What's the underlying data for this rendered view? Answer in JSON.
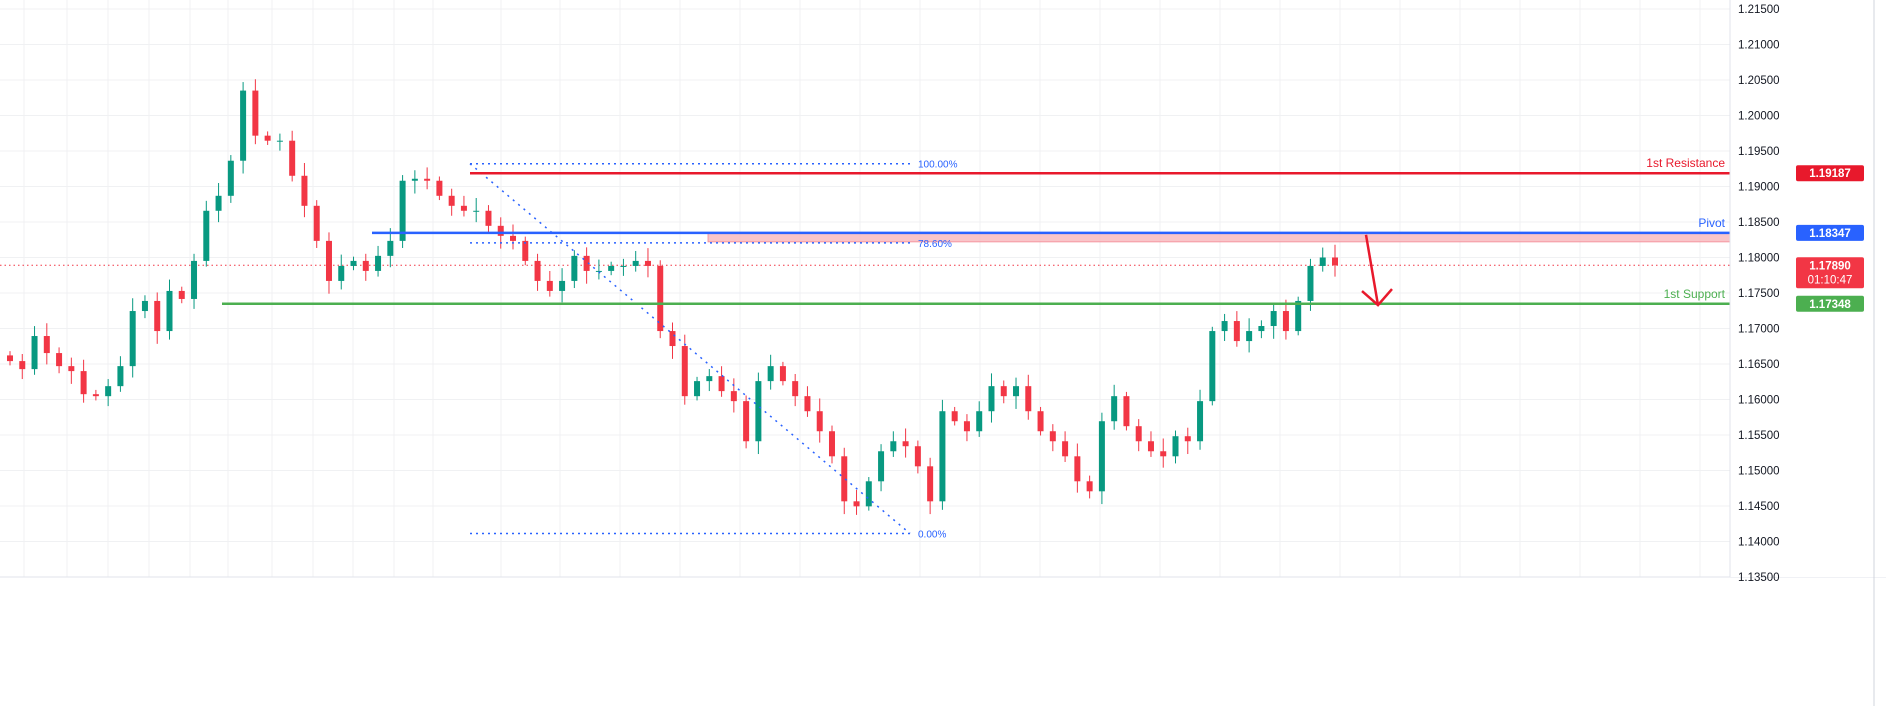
{
  "chart_data": {
    "type": "candlestick",
    "yaxis": {
      "ylim": [
        1.135,
        1.215
      ],
      "ticks": [
        "1.21500",
        "1.21000",
        "1.20500",
        "1.20000",
        "1.19500",
        "1.19000",
        "1.18500",
        "1.18000",
        "1.17500",
        "1.17000",
        "1.16500",
        "1.16000",
        "1.15500",
        "1.15000",
        "1.14500",
        "1.14000",
        "1.13500"
      ],
      "position": "right"
    },
    "grid": true,
    "colors": {
      "up": "#089981",
      "down": "#f23645",
      "resistance": "#e8192c",
      "pivot": "#2962ff",
      "support": "#4caf50",
      "zone": "#f7b6bc",
      "fib": "#2962ff",
      "arrow": "#e8192c"
    },
    "closes": [
      1.16541,
      1.16428,
      1.16894,
      1.16654,
      1.1647,
      1.164,
      1.16075,
      1.16047,
      1.16188,
      1.1647,
      1.17246,
      1.17388,
      1.16964,
      1.17529,
      1.17416,
      1.17952,
      1.18658,
      1.18869,
      1.19363,
      1.20351,
      1.19716,
      1.19645,
      1.19645,
      1.19151,
      1.18728,
      1.18234,
      1.1767,
      1.17881,
      1.17952,
      1.17811,
      1.18023,
      1.18234,
      1.19081,
      1.19109,
      1.19081,
      1.18869,
      1.18728,
      1.18658,
      1.18658,
      1.18446,
      1.18305,
      1.18234,
      1.17952,
      1.1767,
      1.17529,
      1.1767,
      1.18023,
      1.17811,
      1.17811,
      1.17881,
      1.17881,
      1.17952,
      1.17881,
      1.16964,
      1.16753,
      1.16047,
      1.16259,
      1.16329,
      1.16118,
      1.15977,
      1.15412,
      1.16259,
      1.1647,
      1.16259,
      1.16047,
      1.15835,
      1.15553,
      1.152,
      1.14566,
      1.14495,
      1.14848,
      1.15271,
      1.15412,
      1.15342,
      1.15059,
      1.14566,
      1.15835,
      1.15694,
      1.15553,
      1.15835,
      1.16188,
      1.16047,
      1.16188,
      1.15835,
      1.15553,
      1.15412,
      1.152,
      1.14848,
      1.14707,
      1.15694,
      1.16047,
      1.15624,
      1.15412,
      1.15271,
      1.152,
      1.15483,
      1.15412,
      1.15977,
      1.16964,
      1.17105,
      1.16823,
      1.16964,
      1.17035,
      1.17246,
      1.16964,
      1.17388,
      1.17881,
      1.18,
      1.1789
    ],
    "levels": [
      {
        "name": "resistance",
        "label": "1st Resistance",
        "value": 1.19187,
        "tag": "1.19187"
      },
      {
        "name": "pivot",
        "label": "Pivot",
        "value": 1.18347,
        "tag": "1.18347"
      },
      {
        "name": "support",
        "label": "1st Support",
        "value": 1.17348,
        "tag": "1.17348"
      }
    ],
    "zone": {
      "top": 1.18347,
      "bottom": 1.1822
    },
    "fibonacci": {
      "high": 1.19321,
      "low": 1.14113,
      "levels": [
        {
          "ratio": 1.0,
          "label": "100.00%",
          "value": 1.19321
        },
        {
          "ratio": 0.786,
          "label": "78.60%",
          "value": 1.18206
        },
        {
          "ratio": 0.0,
          "label": "0.00%",
          "value": 1.14113
        }
      ]
    },
    "current_price": {
      "value": 1.1789,
      "tag": "1.17890",
      "countdown": "01:10:47"
    },
    "arrow": {
      "from": 1.1832,
      "to": 1.1733,
      "direction": "down"
    }
  }
}
